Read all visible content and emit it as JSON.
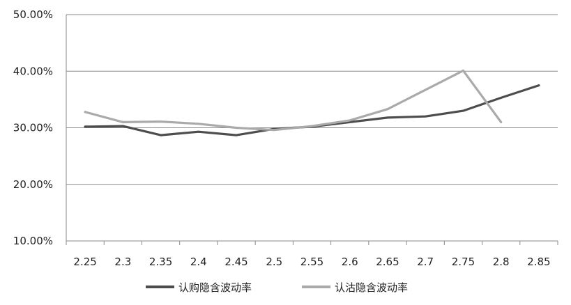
{
  "chart_data": {
    "type": "line",
    "title": "",
    "xlabel": "",
    "ylabel": "",
    "categories": [
      "2.25",
      "2.3",
      "2.35",
      "2.4",
      "2.45",
      "2.5",
      "2.55",
      "2.6",
      "2.65",
      "2.7",
      "2.75",
      "2.8",
      "2.85"
    ],
    "ylim": [
      10,
      50
    ],
    "y_ticks": [
      "10.00%",
      "20.00%",
      "30.00%",
      "40.00%",
      "50.00%"
    ],
    "y_tick_values": [
      10,
      20,
      30,
      40,
      50
    ],
    "grid": true,
    "legend_position": "bottom",
    "series": [
      {
        "name": "认购隐含波动率",
        "color": "#4d4d4d",
        "values": [
          30.2,
          30.3,
          28.7,
          29.3,
          28.7,
          29.8,
          30.2,
          31.0,
          31.8,
          32.0,
          33.0,
          35.3,
          37.5
        ]
      },
      {
        "name": "认沽隐含波动率",
        "color": "#aaaaaa",
        "values": [
          32.8,
          31.0,
          31.1,
          30.7,
          30.0,
          29.6,
          30.3,
          31.3,
          33.3,
          36.7,
          40.1,
          31.0,
          null
        ]
      }
    ]
  }
}
